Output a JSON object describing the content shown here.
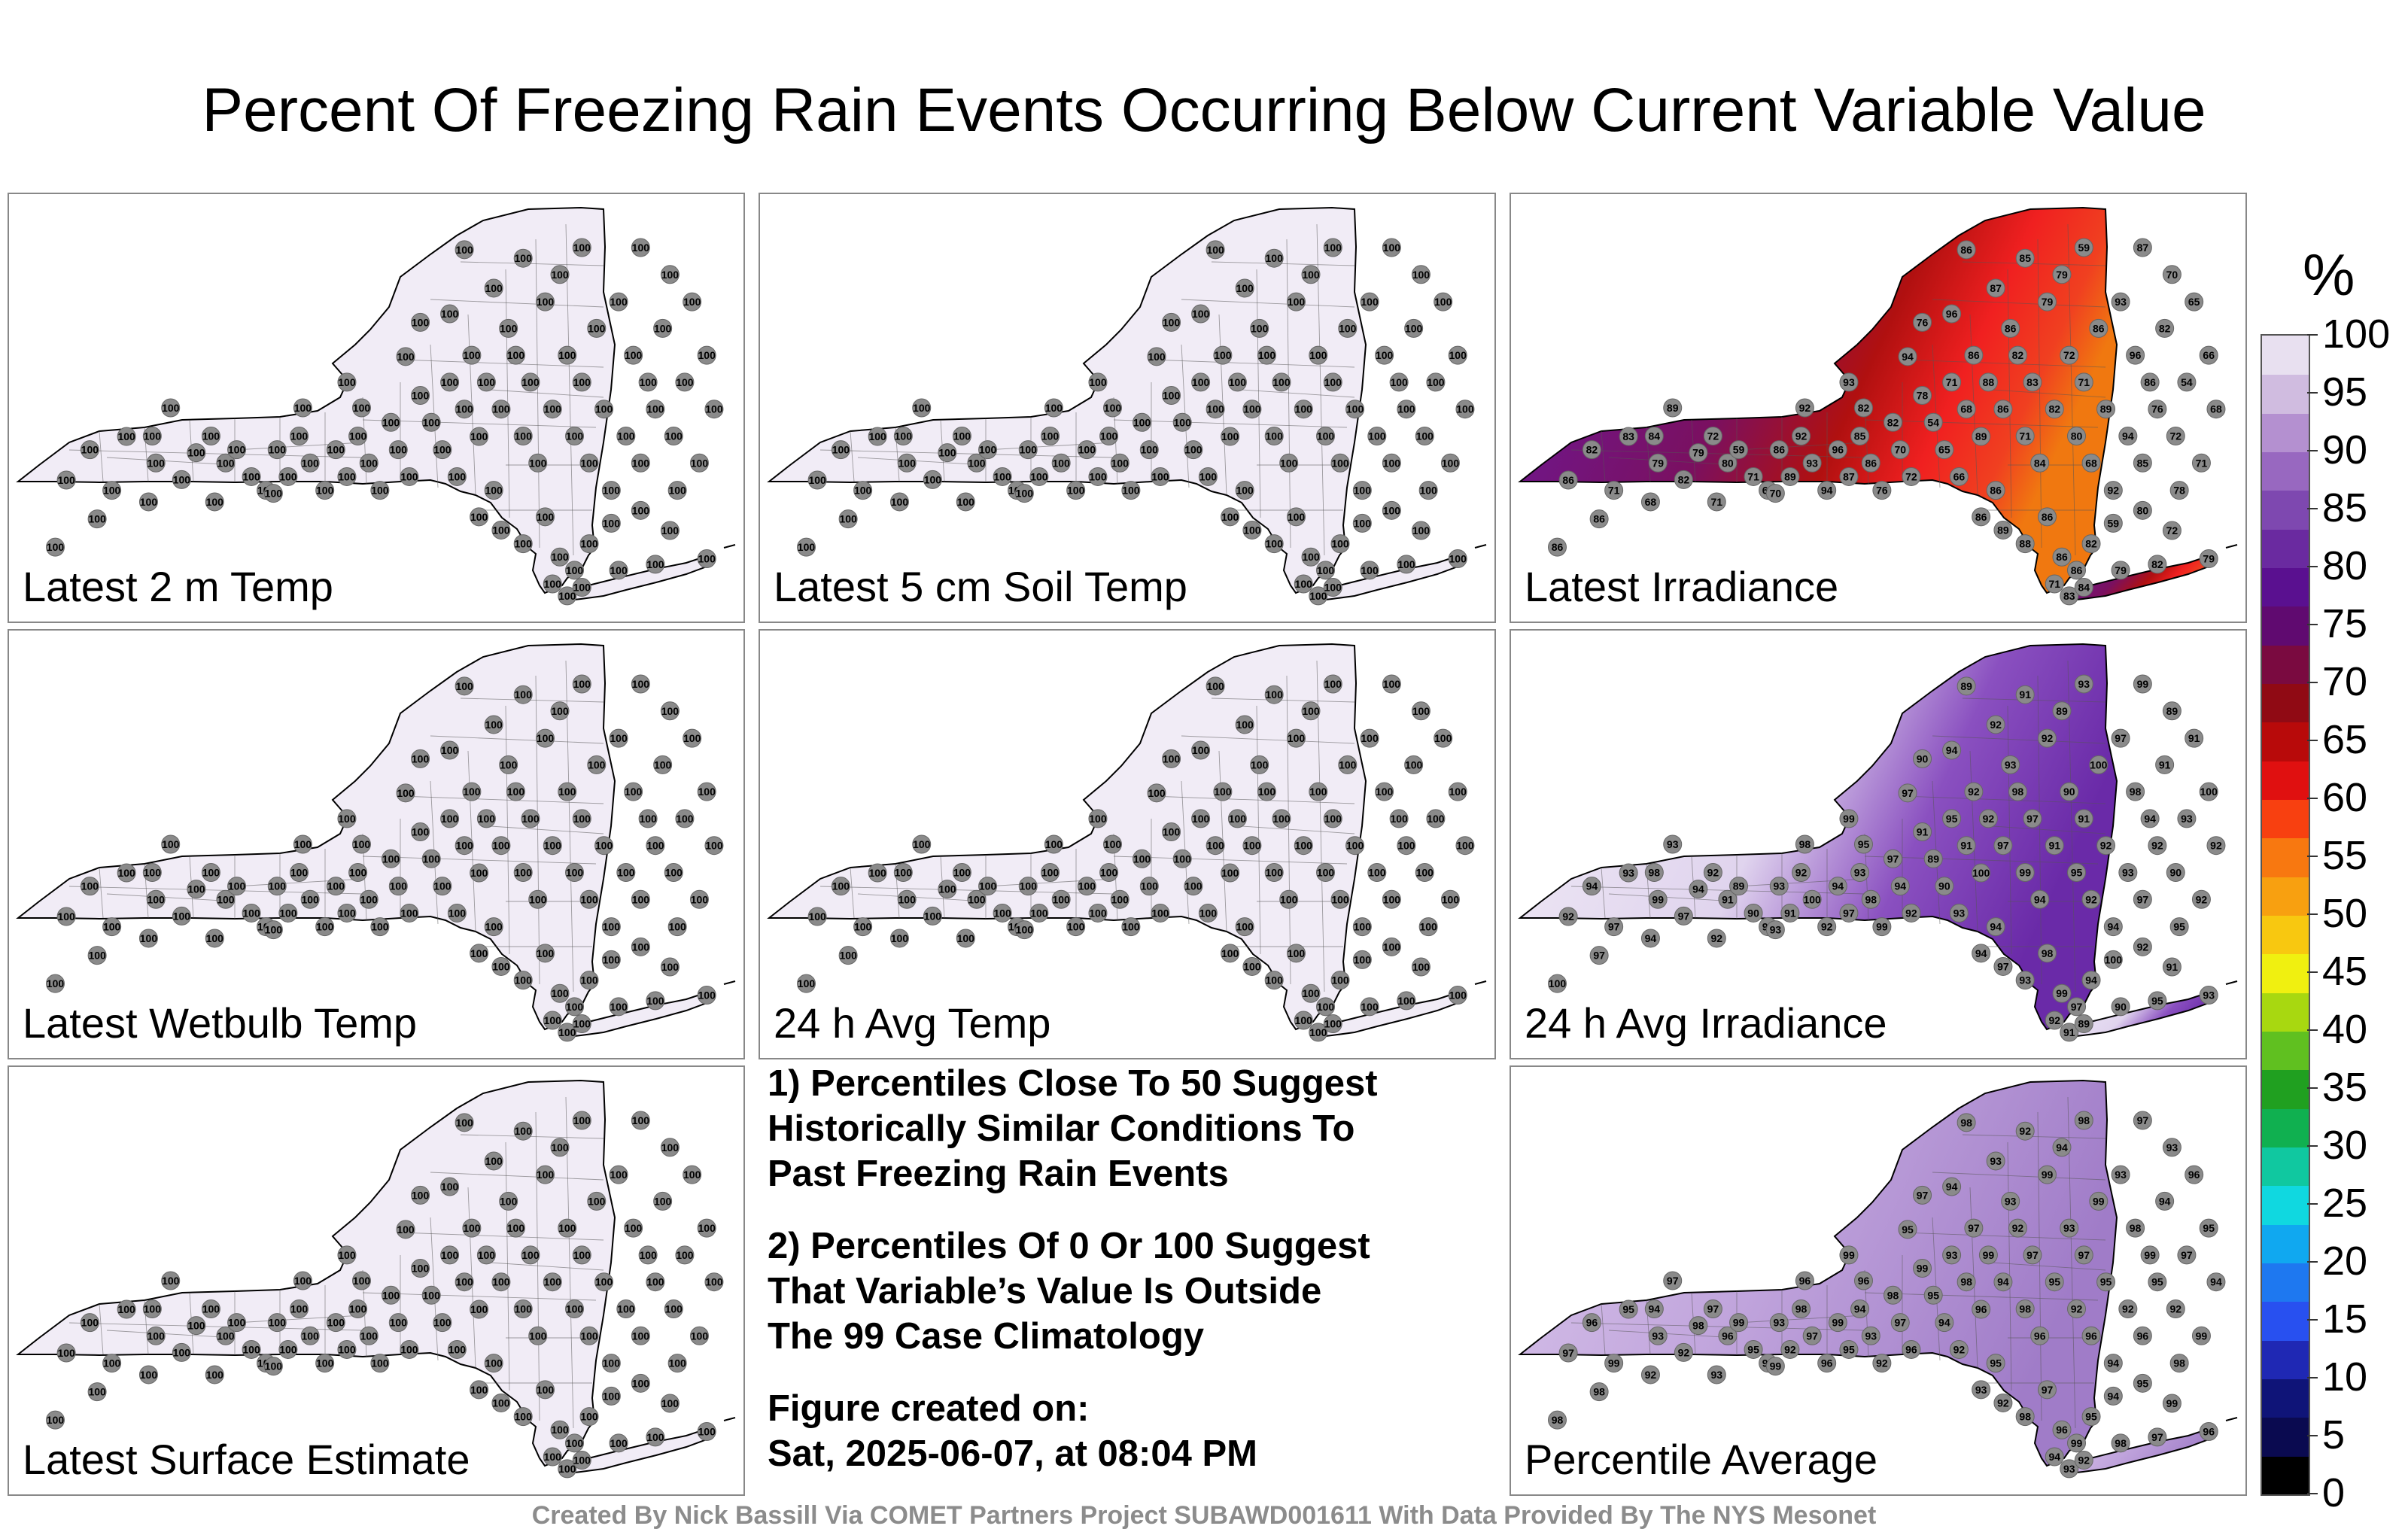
{
  "title": "Percent Of Freezing Rain Events Occurring Below Current Variable Value",
  "panels": [
    {
      "label": "Latest 2 m Temp",
      "fill": "#f1ecf6",
      "station_value": "100"
    },
    {
      "label": "Latest 5 cm Soil Temp",
      "fill": "#f1ecf6",
      "station_value": "100"
    },
    {
      "label": "Latest Irradiance",
      "fill": "irradiance",
      "station_values": [
        "86",
        "86",
        "82",
        "71",
        "83",
        "84",
        "79",
        "82",
        "79",
        "72",
        "80",
        "59",
        "71",
        "68",
        "86",
        "89",
        "92",
        "93",
        "94",
        "96",
        "87",
        "85",
        "86",
        "76",
        "82",
        "70",
        "72",
        "78",
        "54",
        "65",
        "71",
        "66",
        "68",
        "86",
        "89",
        "88",
        "86"
      ]
    },
    {
      "label": "Latest Wetbulb Temp",
      "fill": "#f1ecf6",
      "station_value": "100"
    },
    {
      "label": "24 h Avg Temp",
      "fill": "#f1ecf6",
      "station_value": "100"
    },
    {
      "label": "24 h Avg Irradiance",
      "fill": "avg_irr",
      "station_values": [
        "100",
        "92",
        "94",
        "97",
        "93",
        "98",
        "99",
        "97",
        "94",
        "92",
        "91",
        "89",
        "90",
        "95",
        "93",
        "91",
        "92"
      ]
    },
    {
      "label": "Latest Surface Estimate",
      "fill": "#f1ecf6",
      "station_value": "100"
    },
    {
      "label": "Percentile Average",
      "fill": "pct_avg",
      "station_values": [
        "98",
        "97",
        "96",
        "99",
        "95",
        "94",
        "93",
        "92"
      ]
    }
  ],
  "notes": [
    "1) Percentiles Close To 50 Suggest Historically Similar Conditions To Past Freezing Rain Events",
    "2) Percentiles Of 0 Or 100 Suggest That Variable’s Value Is Outside The 99 Case Climatology",
    "Figure created on: Sat, 2025-06-07, at 08:04 PM"
  ],
  "notes_lines": {
    "n1a": "1) Percentiles Close To 50 Suggest",
    "n1b": "Historically Similar Conditions To",
    "n1c": "Past Freezing Rain Events",
    "n2a": "2) Percentiles Of 0 Or 100 Suggest",
    "n2b": "That Variable’s Value Is Outside",
    "n2c": "The 99 Case Climatology",
    "n3a": "Figure created on:",
    "n3b": "Sat, 2025-06-07, at 08:04 PM"
  },
  "footer": "Created By Nick Bassill Via COMET Partners Project SUBAWD001611 With Data Provided By The NYS Mesonet",
  "colorbar": {
    "unit": "%",
    "ticks": [
      "0",
      "5",
      "10",
      "15",
      "20",
      "25",
      "30",
      "35",
      "40",
      "45",
      "50",
      "55",
      "60",
      "65",
      "70",
      "75",
      "80",
      "85",
      "90",
      "95",
      "100"
    ],
    "colors": [
      "#000000",
      "#0a0a50",
      "#0f1478",
      "#1f28b4",
      "#2850f0",
      "#1e78f0",
      "#10a8f0",
      "#10d8e0",
      "#10c8a0",
      "#10b050",
      "#20a020",
      "#60c020",
      "#a8d810",
      "#f0f010",
      "#f8c810",
      "#f8a010",
      "#f87810",
      "#f84010",
      "#e01010",
      "#b80a0a",
      "#900a14",
      "#7a0a40",
      "#600a70",
      "#5a1090",
      "#6a2aa0",
      "#7e48b0",
      "#9868c0",
      "#b490d0",
      "#d0bce0",
      "#e8e0f0"
    ]
  },
  "chart_data": {
    "type": "heatmap",
    "title": "Percent Of Freezing Rain Events Occurring Below Current Variable Value",
    "colorbar_label": "%",
    "colorbar_range": [
      0,
      100
    ],
    "panels": [
      {
        "name": "Latest 2 m Temp",
        "typical_value": 100
      },
      {
        "name": "Latest 5 cm Soil Temp",
        "typical_value": 100
      },
      {
        "name": "Latest Irradiance",
        "range": [
          54,
          96
        ]
      },
      {
        "name": "Latest Wetbulb Temp",
        "typical_value": 100
      },
      {
        "name": "24 h Avg Temp",
        "typical_value": 100
      },
      {
        "name": "24 h Avg Irradiance",
        "range": [
          89,
          100
        ]
      },
      {
        "name": "Latest Surface Estimate",
        "typical_value": 100
      },
      {
        "name": "Percentile Average",
        "range": [
          92,
          99
        ]
      }
    ]
  }
}
